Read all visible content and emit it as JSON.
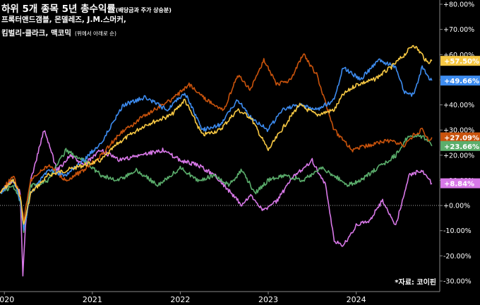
{
  "header": {
    "title_main": "하위 5개 종목 5년 총수익률",
    "title_small": "(배당금과 주가 상승분)",
    "line2": "프록터앤드갬블, 몬델레즈, J.M.스머커,",
    "line3_main": "킴벌리-클라크, 맥코믹",
    "line3_note": "(위에서 아래로 순)"
  },
  "source": "*자료: 코이핀",
  "chart_data": {
    "type": "line",
    "title": "하위 5개 종목 5년 총수익률",
    "x_ticks": [
      "2020",
      "2021",
      "2022",
      "2023",
      "2024"
    ],
    "x_tick_positions": [
      2020.0,
      2021.0,
      2022.0,
      2023.0,
      2024.0
    ],
    "xlim": [
      2019.95,
      2024.95
    ],
    "ylim": [
      -30,
      80
    ],
    "y_ticks": [
      80,
      70,
      60,
      50,
      40,
      30,
      20,
      10,
      0,
      -10,
      -20,
      -30
    ],
    "y_tick_labels": [
      "+80.00%",
      "+70.00%",
      "+60.00%",
      "+50.00%",
      "+40.00%",
      "+30.00%",
      "+20.00%",
      "+10.00%",
      "+0.00%",
      "-10.00%",
      "-20.00%",
      "-30.00%"
    ],
    "background": "#000000",
    "zero_line": "dotted",
    "series": [
      {
        "color": "#F7C843",
        "end_label": "+57.50%",
        "x": [
          2019.95,
          2020.1,
          2020.18,
          2020.22,
          2020.3,
          2020.5,
          2020.7,
          2020.9,
          2021.1,
          2021.3,
          2021.6,
          2021.9,
          2022.05,
          2022.25,
          2022.45,
          2022.65,
          2022.8,
          2023.0,
          2023.15,
          2023.35,
          2023.55,
          2023.75,
          2023.85,
          2024.0,
          2024.2,
          2024.4,
          2024.55,
          2024.65,
          2024.75,
          2024.8,
          2024.86
        ],
        "y": [
          5,
          10,
          4,
          -8,
          5,
          12,
          14,
          16,
          18,
          25,
          32,
          36,
          42,
          28,
          30,
          38,
          35,
          22,
          30,
          40,
          36,
          38,
          44,
          48,
          50,
          55,
          60,
          64,
          60,
          57,
          57.5
        ]
      },
      {
        "color": "#3D8CF0",
        "end_label": "+49.66%",
        "x": [
          2019.95,
          2020.1,
          2020.18,
          2020.22,
          2020.3,
          2020.5,
          2020.7,
          2020.9,
          2021.1,
          2021.35,
          2021.6,
          2021.85,
          2022.05,
          2022.25,
          2022.45,
          2022.65,
          2022.8,
          2023.0,
          2023.15,
          2023.35,
          2023.55,
          2023.75,
          2023.85,
          2024.05,
          2024.25,
          2024.45,
          2024.55,
          2024.65,
          2024.75,
          2024.8,
          2024.86
        ],
        "y": [
          5,
          10,
          2,
          -10,
          5,
          14,
          12,
          18,
          25,
          40,
          43,
          38,
          45,
          30,
          32,
          42,
          35,
          30,
          38,
          40,
          38,
          42,
          55,
          50,
          58,
          55,
          45,
          44,
          55,
          52,
          49.66
        ]
      },
      {
        "color": "#C9530C",
        "end_label": "+27.09%",
        "x": [
          2019.95,
          2020.1,
          2020.18,
          2020.22,
          2020.3,
          2020.5,
          2020.7,
          2020.9,
          2021.1,
          2021.3,
          2021.6,
          2021.9,
          2022.1,
          2022.3,
          2022.5,
          2022.65,
          2022.8,
          2022.95,
          2023.1,
          2023.25,
          2023.4,
          2023.55,
          2023.75,
          2023.95,
          2024.15,
          2024.35,
          2024.55,
          2024.65,
          2024.75,
          2024.82,
          2024.86
        ],
        "y": [
          5,
          12,
          4,
          -6,
          10,
          16,
          10,
          14,
          20,
          28,
          36,
          42,
          48,
          42,
          38,
          52,
          46,
          58,
          48,
          50,
          60,
          52,
          30,
          22,
          24,
          26,
          24,
          28,
          30,
          26,
          27.09
        ]
      },
      {
        "color": "#5BAE6C",
        "end_label": "+23.66%",
        "x": [
          2019.95,
          2020.1,
          2020.18,
          2020.22,
          2020.3,
          2020.5,
          2020.7,
          2020.9,
          2021.1,
          2021.3,
          2021.5,
          2021.75,
          2022.0,
          2022.2,
          2022.4,
          2022.55,
          2022.7,
          2022.85,
          2023.0,
          2023.2,
          2023.4,
          2023.6,
          2023.75,
          2023.9,
          2024.05,
          2024.25,
          2024.45,
          2024.6,
          2024.72,
          2024.8,
          2024.86
        ],
        "y": [
          5,
          8,
          2,
          -10,
          8,
          10,
          22,
          18,
          12,
          10,
          14,
          8,
          15,
          10,
          12,
          8,
          14,
          5,
          10,
          12,
          10,
          15,
          12,
          8,
          10,
          15,
          20,
          28,
          28,
          26,
          23.66
        ]
      },
      {
        "color": "#D878E8",
        "end_label": "+8.84%",
        "x": [
          2019.95,
          2020.1,
          2020.18,
          2020.21,
          2020.24,
          2020.3,
          2020.45,
          2020.6,
          2020.75,
          2020.9,
          2021.1,
          2021.3,
          2021.55,
          2021.8,
          2022.0,
          2022.2,
          2022.4,
          2022.55,
          2022.7,
          2022.8,
          2022.95,
          2023.1,
          2023.3,
          2023.5,
          2023.65,
          2023.75,
          2023.85,
          2024.0,
          2024.15,
          2024.3,
          2024.45,
          2024.6,
          2024.75,
          2024.86
        ],
        "y": [
          5,
          10,
          5,
          -28,
          -8,
          10,
          30,
          14,
          20,
          16,
          22,
          18,
          20,
          22,
          18,
          16,
          12,
          6,
          0,
          4,
          -2,
          2,
          12,
          18,
          8,
          -14,
          -16,
          -8,
          -6,
          2,
          -8,
          12,
          14,
          8.84
        ]
      }
    ]
  }
}
